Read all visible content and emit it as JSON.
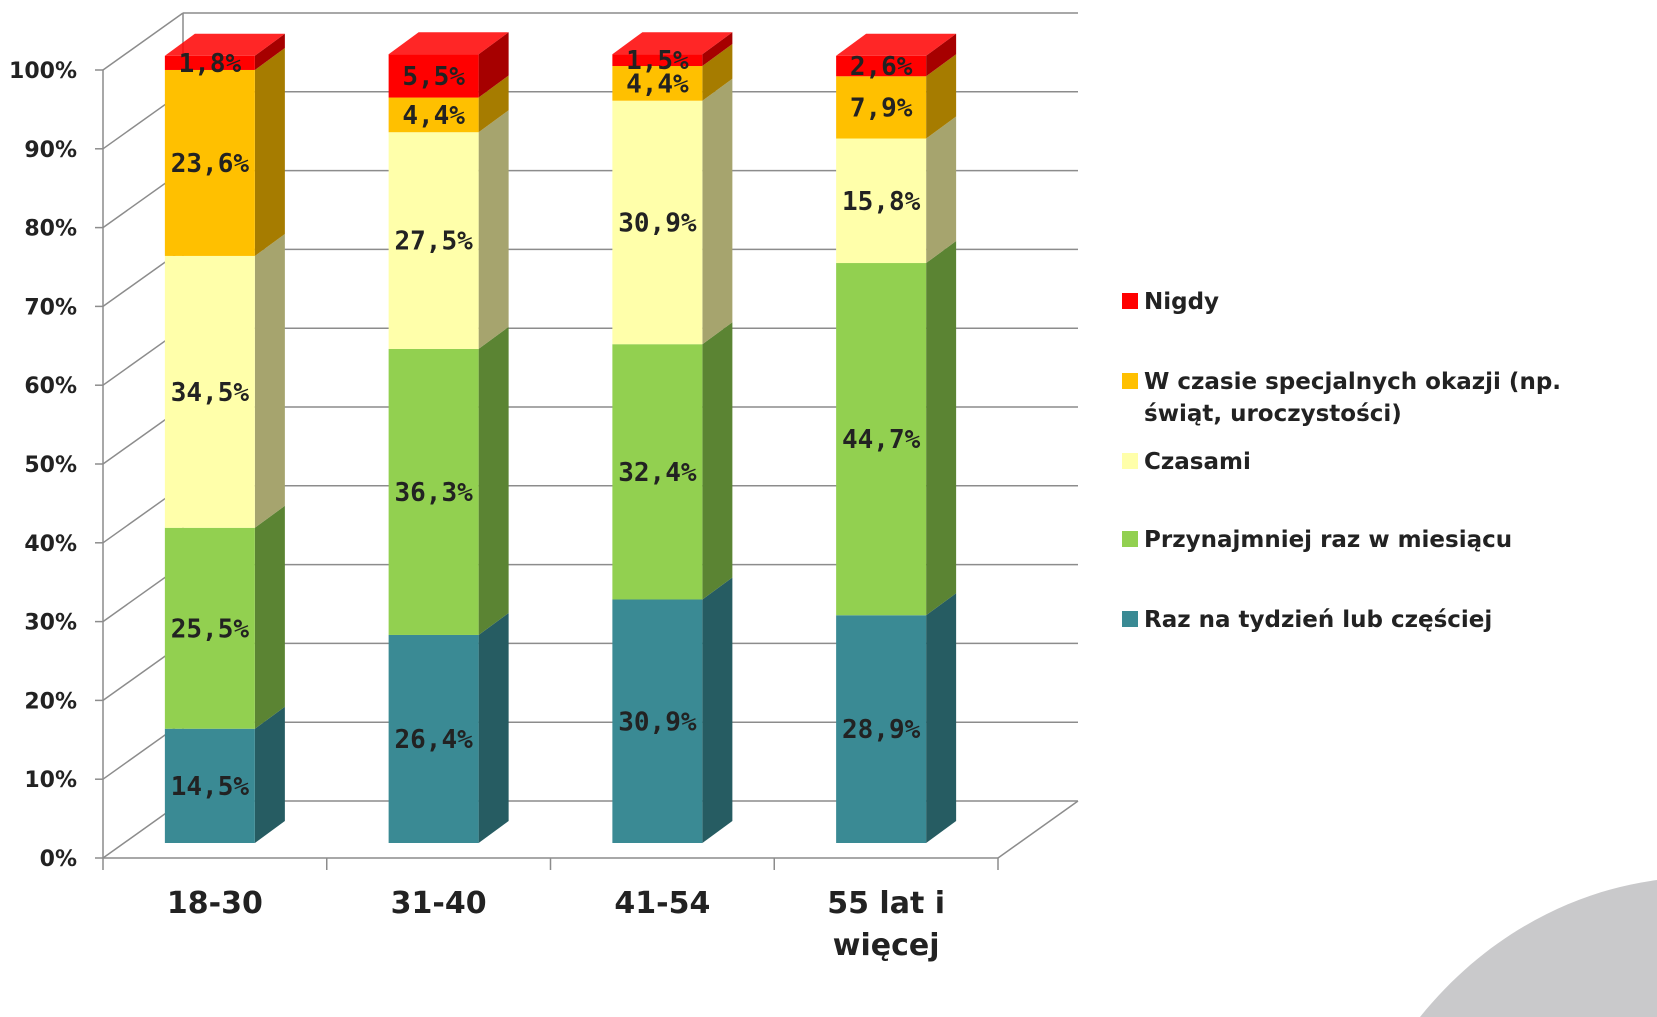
{
  "chart_data": {
    "type": "bar",
    "stacked": true,
    "three_d": true,
    "categories": [
      [
        "18-30"
      ],
      [
        "31-40"
      ],
      [
        "41-54"
      ],
      [
        "55 lat i",
        "więcej"
      ]
    ],
    "series": [
      {
        "name": "Raz na tydzień lub częściej",
        "color": "#3A8A94",
        "side": "#265C62",
        "values": [
          14.5,
          26.4,
          30.9,
          28.9
        ],
        "labels": [
          "14,5%",
          "26,4%",
          "30,9%",
          "28,9%"
        ]
      },
      {
        "name": "Przynajmniej raz w miesiącu",
        "color": "#92D050",
        "side": "#5B8433",
        "values": [
          25.5,
          36.3,
          32.4,
          44.7
        ],
        "labels": [
          "25,5%",
          "36,3%",
          "32,4%",
          "44,7%"
        ]
      },
      {
        "name": "Czasami",
        "color": "#FFFFAA",
        "side": "#A6A46E",
        "values": [
          34.5,
          27.5,
          30.9,
          15.8
        ],
        "labels": [
          "34,5%",
          "27,5%",
          "30,9%",
          "15,8%"
        ]
      },
      {
        "name": "W czasie specjalnych okazji (np. świąt, uroczystości)",
        "color": "#FFC000",
        "side": "#A67C00",
        "values": [
          23.6,
          4.4,
          4.4,
          7.9
        ],
        "labels": [
          "23,6%",
          "4,4%",
          "4,4%",
          "7,9%"
        ]
      },
      {
        "name": "Nigdy",
        "color": "#FF0000",
        "side": "#A60000",
        "values": [
          1.8,
          5.5,
          1.5,
          2.6
        ],
        "labels": [
          "1,8%",
          "5,5%",
          "1,5%",
          "2,6%"
        ]
      }
    ],
    "legend_order": [
      4,
      3,
      2,
      1,
      0
    ],
    "legend_lines": [
      [
        "Nigdy"
      ],
      [
        "W czasie specjalnych okazji (np.",
        "świąt, uroczystości)"
      ],
      [
        "Czasami"
      ],
      [
        "Przynajmniej raz w miesiącu"
      ],
      [
        "Raz na tydzień lub częściej"
      ]
    ],
    "y_ticks": [
      "0%",
      "10%",
      "20%",
      "30%",
      "40%",
      "50%",
      "60%",
      "70%",
      "80%",
      "90%",
      "100%"
    ],
    "ylim": [
      0,
      100
    ],
    "grid": true,
    "legend_position": "right"
  }
}
